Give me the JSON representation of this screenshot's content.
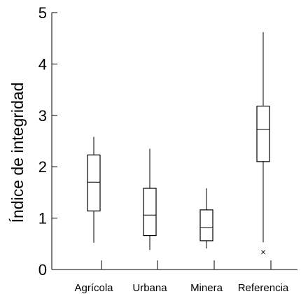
{
  "chart_data": {
    "type": "box",
    "ylabel": "Índice de integridad",
    "xlabel": "",
    "ylim": [
      0,
      5
    ],
    "yticks": [
      "0",
      "1",
      "2",
      "3",
      "4",
      "5"
    ],
    "grid": false,
    "categories": [
      "Agrícola",
      "Urbana",
      "Minera",
      "Referencia"
    ],
    "boxes": [
      {
        "name": "Agrícola",
        "whisker_low": 0.52,
        "q1": 1.14,
        "median": 1.7,
        "q3": 2.23,
        "whisker_high": 2.58,
        "outliers": []
      },
      {
        "name": "Urbana",
        "whisker_low": 0.38,
        "q1": 0.66,
        "median": 1.06,
        "q3": 1.58,
        "whisker_high": 2.35,
        "outliers": []
      },
      {
        "name": "Minera",
        "whisker_low": 0.41,
        "q1": 0.56,
        "median": 0.81,
        "q3": 1.16,
        "whisker_high": 1.58,
        "outliers": []
      },
      {
        "name": "Referencia",
        "whisker_low": 0.53,
        "q1": 2.1,
        "median": 2.73,
        "q3": 3.18,
        "whisker_high": 4.62,
        "outliers": [
          0.35
        ]
      }
    ],
    "colors": {
      "line": "#000000",
      "background": "#ffffff"
    }
  }
}
